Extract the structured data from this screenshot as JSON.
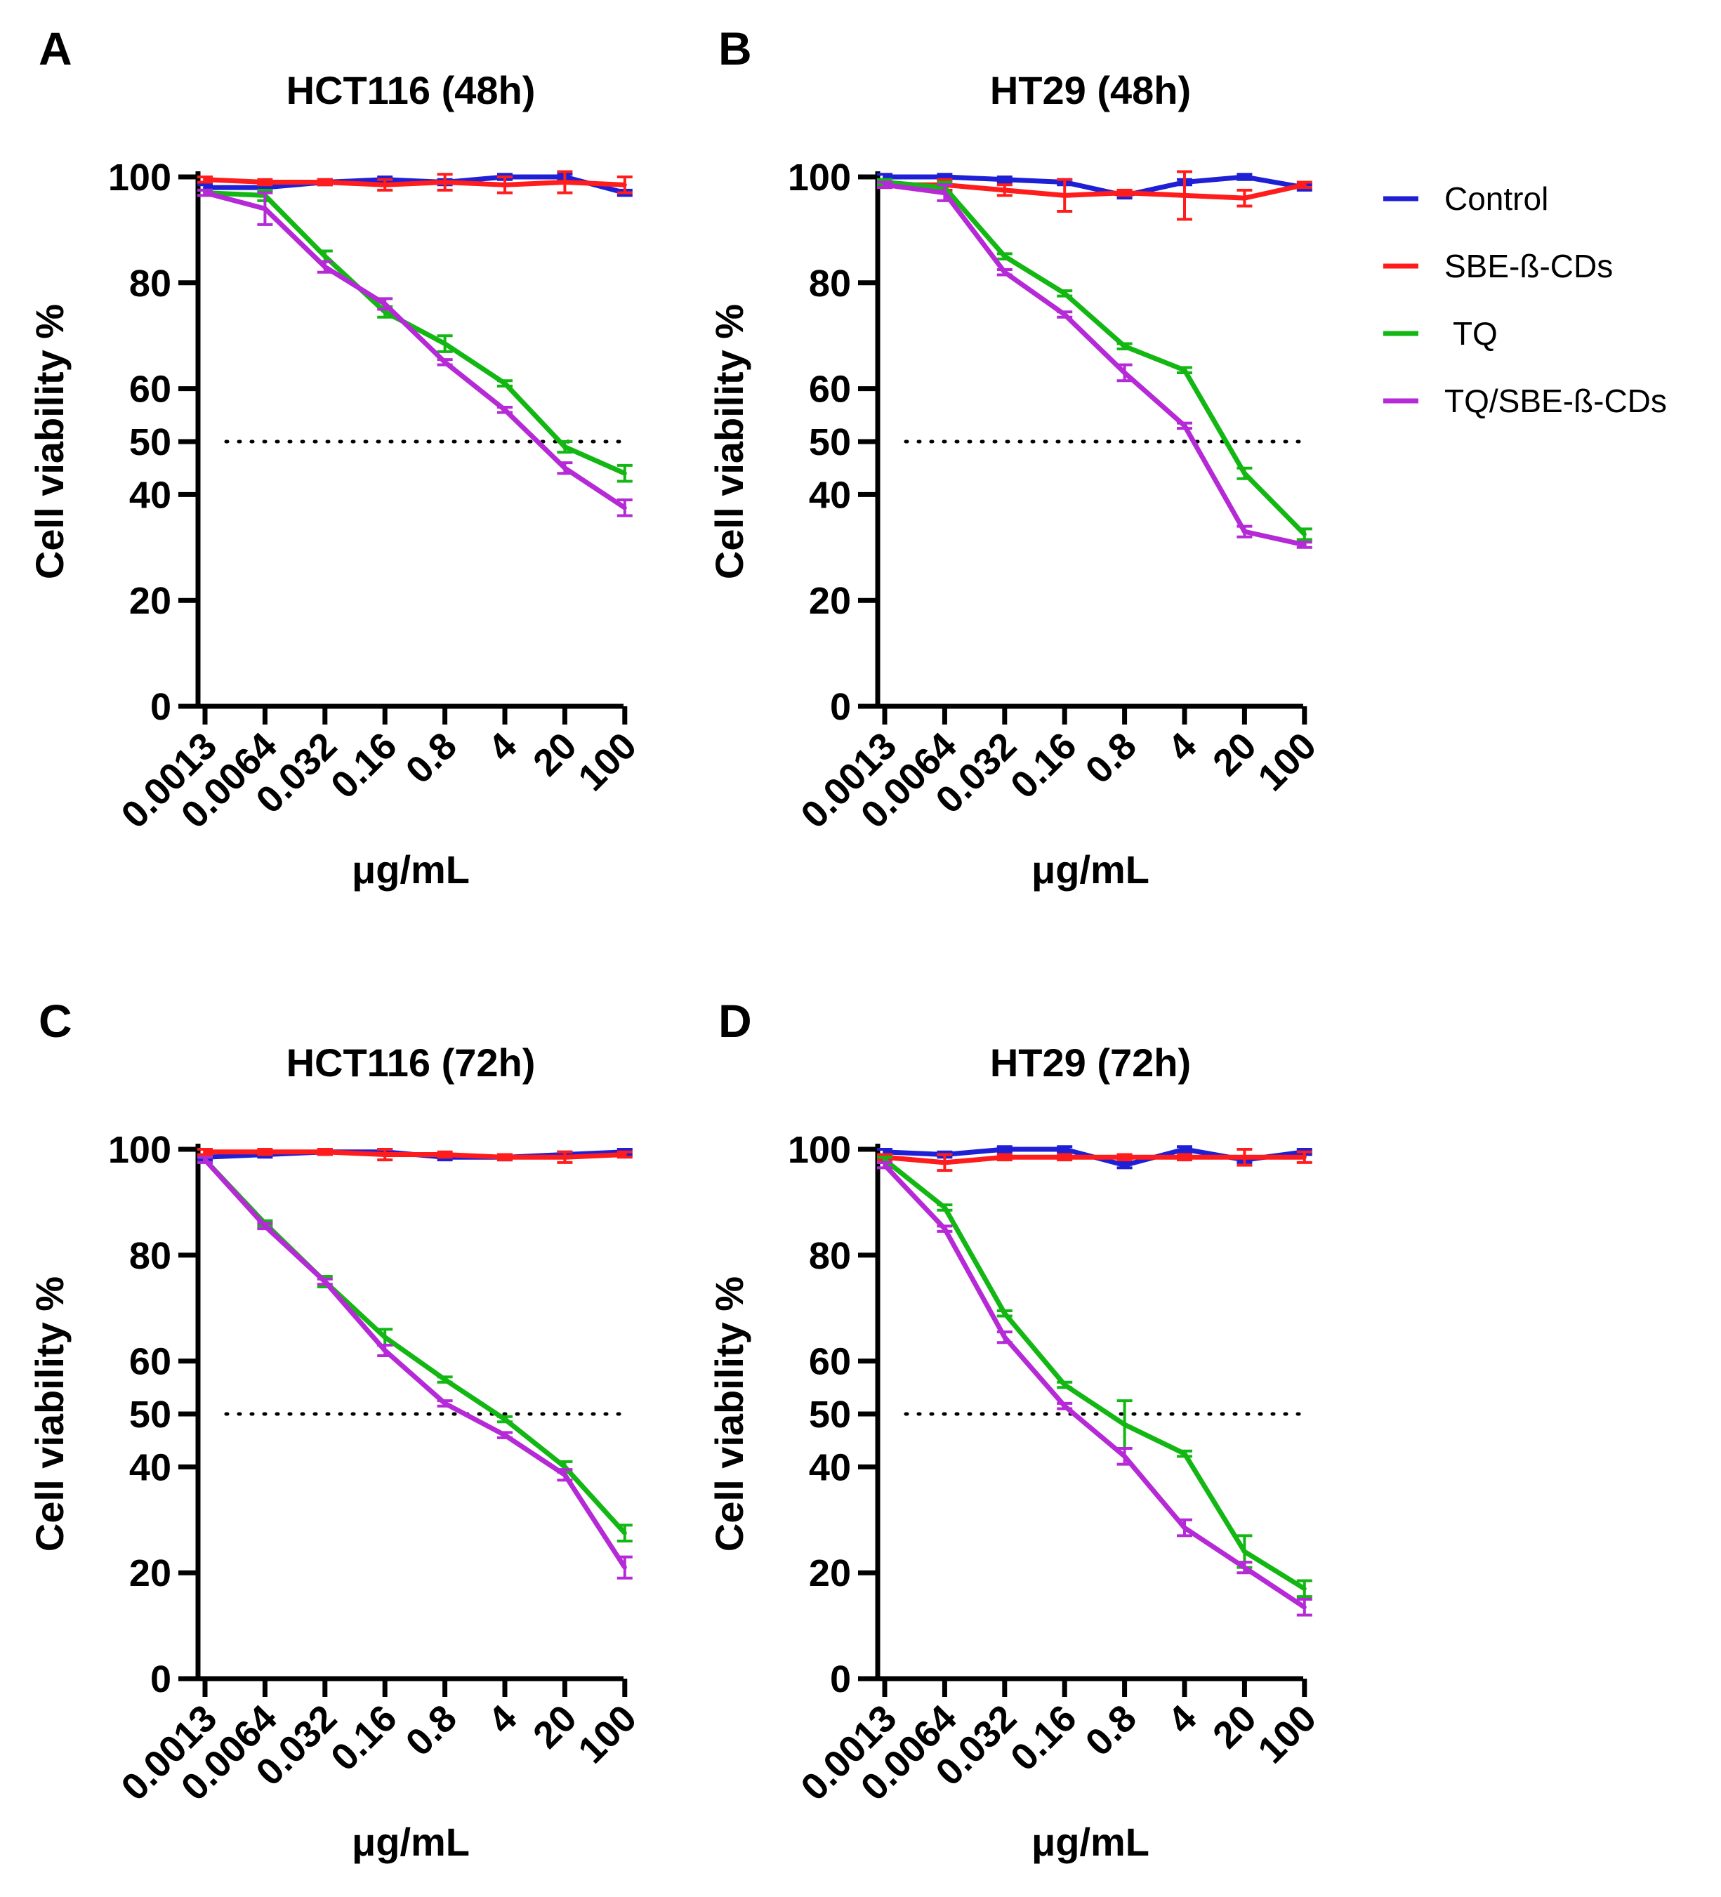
{
  "chart_data": [
    {
      "type": "line",
      "panel": "A",
      "title": "HCT116 (48h)",
      "xlabel": "μg/mL",
      "ylabel": "Cell viability %",
      "ylim": [
        0,
        100
      ],
      "y_ticks": [
        0,
        20,
        40,
        50,
        60,
        80,
        100
      ],
      "reference_line": 50,
      "categories": [
        "0.0013",
        "0.0064",
        "0.032",
        "0.16",
        "0.8",
        "4",
        "20",
        "100"
      ],
      "series": [
        {
          "name": "Control",
          "values": [
            98,
            98,
            99,
            99.5,
            99,
            100,
            100,
            97
          ],
          "errors": [
            0.5,
            0.5,
            0.5,
            0.5,
            0.5,
            0.5,
            0.5,
            0.5
          ]
        },
        {
          "name": "SBE-ß-CDs",
          "values": [
            99.5,
            99,
            99,
            98.5,
            99,
            98.5,
            99,
            98.5
          ],
          "errors": [
            0.5,
            0.5,
            0.5,
            1,
            1.5,
            1.5,
            2,
            1.5
          ]
        },
        {
          "name": "TQ",
          "values": [
            97,
            96.5,
            85,
            74.5,
            68.5,
            61,
            49,
            44
          ],
          "errors": [
            0.5,
            1,
            1,
            1,
            1.5,
            0.5,
            1,
            1.5
          ]
        },
        {
          "name": "TQ/SBE-ß-CDs",
          "values": [
            97,
            94,
            83,
            76,
            65,
            56,
            45,
            37.5
          ],
          "errors": [
            0.5,
            3,
            1,
            1,
            0.5,
            0.5,
            1,
            1.5
          ]
        }
      ]
    },
    {
      "type": "line",
      "panel": "B",
      "title": "HT29 (48h)",
      "xlabel": "μg/mL",
      "ylabel": "Cell viability %",
      "ylim": [
        0,
        100
      ],
      "y_ticks": [
        0,
        20,
        40,
        50,
        60,
        80,
        100
      ],
      "reference_line": 50,
      "categories": [
        "0.0013",
        "0.0064",
        "0.032",
        "0.16",
        "0.8",
        "4",
        "20",
        "100"
      ],
      "series": [
        {
          "name": "Control",
          "values": [
            100,
            100,
            99.5,
            99,
            96.5,
            99,
            100,
            98
          ],
          "errors": [
            0.5,
            0.5,
            0.5,
            0.5,
            0.5,
            0.5,
            0.5,
            0.5
          ]
        },
        {
          "name": "SBE-ß-CDs",
          "values": [
            98.5,
            98.5,
            97.5,
            96.5,
            97,
            96.5,
            96,
            98.5
          ],
          "errors": [
            0.5,
            1,
            1,
            3,
            0.5,
            4.5,
            1.5,
            0.5
          ]
        },
        {
          "name": "TQ",
          "values": [
            99,
            98,
            85,
            78,
            68,
            63.5,
            44,
            32.5
          ],
          "errors": [
            0.5,
            1,
            0.5,
            0.5,
            0.5,
            0.5,
            1,
            1
          ]
        },
        {
          "name": "TQ/SBE-ß-CDs",
          "values": [
            98.5,
            97,
            82,
            74,
            63,
            53,
            33,
            30.5
          ],
          "errors": [
            0.5,
            1.5,
            0.5,
            0.5,
            1.5,
            0.5,
            1,
            0.5
          ]
        }
      ]
    },
    {
      "type": "line",
      "panel": "C",
      "title": "HCT116 (72h)",
      "xlabel": "μg/mL",
      "ylabel": "Cell viability %",
      "ylim": [
        0,
        100
      ],
      "y_ticks": [
        0,
        20,
        40,
        50,
        60,
        80,
        100
      ],
      "reference_line": 50,
      "categories": [
        "0.0013",
        "0.0064",
        "0.032",
        "0.16",
        "0.8",
        "4",
        "20",
        "100"
      ],
      "series": [
        {
          "name": "Control",
          "values": [
            98.5,
            99,
            99.5,
            99.5,
            98.5,
            98.5,
            99,
            99.5
          ],
          "errors": [
            0.5,
            0.5,
            0.5,
            0.5,
            0.5,
            0.5,
            0.5,
            0.5
          ]
        },
        {
          "name": "SBE-ß-CDs",
          "values": [
            99.5,
            99.5,
            99.5,
            99,
            99,
            98.5,
            98.5,
            99
          ],
          "errors": [
            0.5,
            0.5,
            0.5,
            1,
            0.5,
            0.5,
            1,
            0.5
          ]
        },
        {
          "name": "TQ",
          "values": [
            98,
            86,
            75,
            64.5,
            56.5,
            49,
            40,
            27.5
          ],
          "errors": [
            0.5,
            0.5,
            1,
            1.5,
            0.5,
            0.5,
            1,
            1.5
          ]
        },
        {
          "name": "TQ/SBE-ß-CDs",
          "values": [
            98,
            85.5,
            75,
            62,
            52,
            46,
            38.5,
            21
          ],
          "errors": [
            0.5,
            0.5,
            0.5,
            1,
            0.5,
            0.5,
            1,
            2
          ]
        }
      ]
    },
    {
      "type": "line",
      "panel": "D",
      "title": "HT29 (72h)",
      "xlabel": "μg/mL",
      "ylabel": "Cell viability %",
      "ylim": [
        0,
        100
      ],
      "y_ticks": [
        0,
        20,
        40,
        50,
        60,
        80,
        100
      ],
      "reference_line": 50,
      "categories": [
        "0.0013",
        "0.0064",
        "0.032",
        "0.16",
        "0.8",
        "4",
        "20",
        "100"
      ],
      "series": [
        {
          "name": "Control",
          "values": [
            99.5,
            99,
            100,
            100,
            97,
            100,
            98,
            99.5
          ],
          "errors": [
            0.5,
            0.5,
            0.5,
            0.5,
            0.5,
            0.5,
            0.5,
            0.5
          ]
        },
        {
          "name": "SBE-ß-CDs",
          "values": [
            98.5,
            97.5,
            98.5,
            98.5,
            98.5,
            98.5,
            98.5,
            98.5
          ],
          "errors": [
            0.5,
            1.5,
            0.5,
            0.5,
            0.5,
            0.5,
            1.5,
            1
          ]
        },
        {
          "name": "TQ",
          "values": [
            98,
            89,
            69,
            55.5,
            48,
            42.5,
            24,
            17
          ],
          "errors": [
            0.5,
            0.5,
            0.5,
            0.5,
            4.5,
            0.5,
            3,
            1.5
          ]
        },
        {
          "name": "TQ/SBE-ß-CDs",
          "values": [
            97,
            85,
            64.5,
            51.5,
            42,
            28.5,
            21,
            13.5
          ],
          "errors": [
            0.5,
            0.5,
            1,
            0.5,
            1.5,
            1.5,
            1,
            1.5
          ]
        }
      ]
    }
  ],
  "legend": {
    "position": "right of panel B",
    "items": [
      {
        "label": "Control",
        "color": "#1f1fd6"
      },
      {
        "label": "SBE-ß-CDs",
        "color": "#ff1c1c"
      },
      {
        "label": " TQ",
        "color": "#13b713"
      },
      {
        "label": "TQ/SBE-ß-CDs",
        "color": "#b52ad6"
      }
    ]
  },
  "colors": {
    "Control": "#1f1fd6",
    "SBE-ß-CDs": "#ff1c1c",
    "TQ": "#13b713",
    "TQ/SBE-ß-CDs": "#b52ad6",
    "axis": "#000000"
  }
}
